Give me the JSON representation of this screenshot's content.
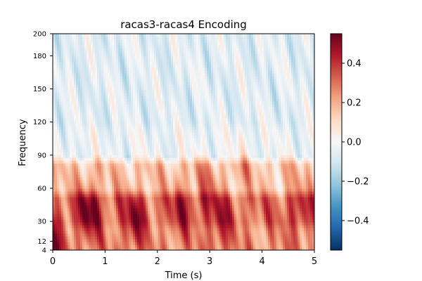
{
  "chart_data": {
    "type": "heatmap",
    "title": "racas3-racas4 Encoding",
    "xlabel": "Time (s)",
    "ylabel": "Frequency",
    "xlim": [
      0,
      5
    ],
    "ylim": [
      4,
      200
    ],
    "x_ticks": [
      0,
      1,
      2,
      3,
      4,
      5
    ],
    "x_tick_labels": [
      "0",
      "1",
      "2",
      "3",
      "4",
      "5"
    ],
    "y_ticks": [
      4,
      12,
      30,
      60,
      90,
      120,
      150,
      180,
      200
    ],
    "y_tick_labels": [
      "4",
      "12",
      "30",
      "60",
      "90",
      "120",
      "150",
      "180",
      "200"
    ],
    "colorbar": {
      "colormap": "RdBu_r",
      "range": [
        -0.55,
        0.55
      ],
      "ticks": [
        0.4,
        0.2,
        0.0,
        -0.2,
        -0.4
      ],
      "tick_labels": [
        "0.4",
        "0.2",
        "0.0",
        "−0.2",
        "−0.4"
      ]
    },
    "bands": [
      {
        "freq_range": [
          4,
          30
        ],
        "mean_value": 0.25
      },
      {
        "freq_range": [
          30,
          60
        ],
        "mean_value": 0.3
      },
      {
        "freq_range": [
          60,
          90
        ],
        "mean_value": 0.15
      },
      {
        "freq_range": [
          90,
          120
        ],
        "mean_value": -0.03
      },
      {
        "freq_range": [
          120,
          200
        ],
        "mean_value": -0.06
      }
    ],
    "hotspots": [
      {
        "time": 0.7,
        "freq": 40,
        "value": 0.5
      },
      {
        "time": 1.55,
        "freq": 30,
        "value": 0.45
      },
      {
        "time": 2.45,
        "freq": 45,
        "value": 0.4
      },
      {
        "time": 2.95,
        "freq": 60,
        "value": 0.38
      },
      {
        "time": 3.2,
        "freq": 25,
        "value": 0.4
      },
      {
        "time": 3.65,
        "freq": 85,
        "value": 0.32
      },
      {
        "time": 4.7,
        "freq": 40,
        "value": 0.38
      },
      {
        "time": 0.05,
        "freq": 8,
        "value": 0.45
      }
    ]
  }
}
